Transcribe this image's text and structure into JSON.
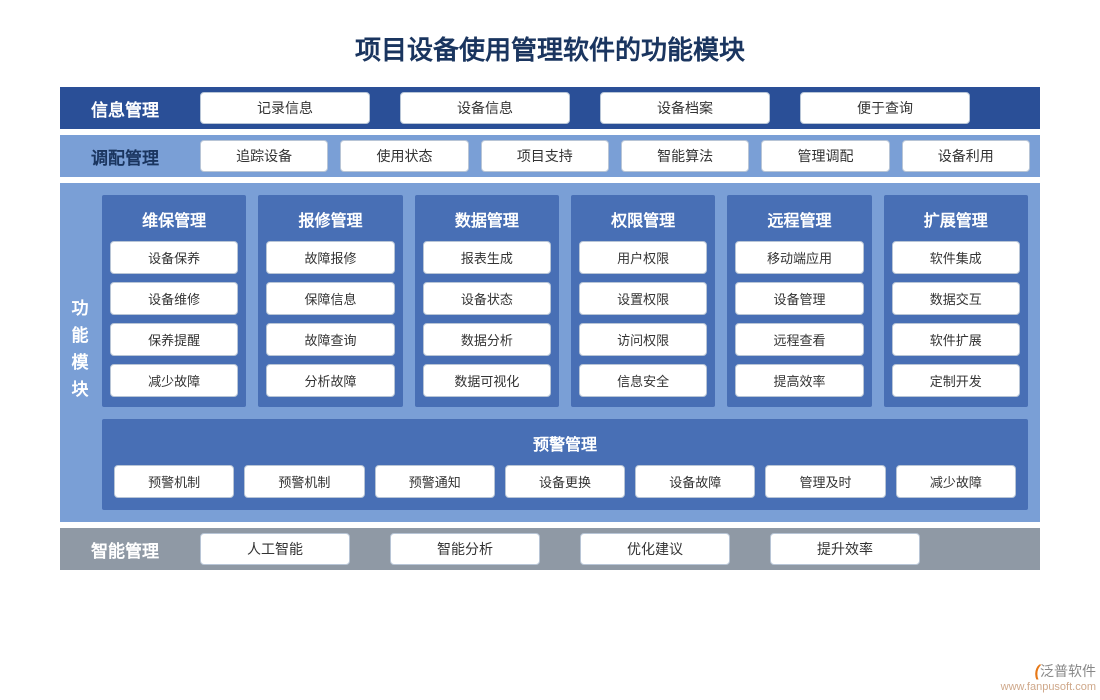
{
  "title": "项目设备使用管理软件的功能模块",
  "colors": {
    "title_text": "#1a355f",
    "row_info_bg": "#2a4f97",
    "row_alloc_bg": "#7a9fd6",
    "main_bg": "#7a9fd6",
    "col_bg": "#486fb5",
    "row_smart_bg": "#8f99a5",
    "pill_bg": "#ffffff",
    "pill_border": "#b8c5d6",
    "pill_text": "#333333",
    "white_text": "#ffffff"
  },
  "rows": {
    "info": {
      "label": "信息管理",
      "items": [
        "记录信息",
        "设备信息",
        "设备档案",
        "便于查询"
      ]
    },
    "alloc": {
      "label": "调配管理",
      "items": [
        "追踪设备",
        "使用状态",
        "项目支持",
        "智能算法",
        "管理调配",
        "设备利用"
      ]
    },
    "smart": {
      "label": "智能管理",
      "items": [
        "人工智能",
        "智能分析",
        "优化建议",
        "提升效率"
      ]
    }
  },
  "main": {
    "vlabel": "功能模块",
    "columns": [
      {
        "head": "维保管理",
        "items": [
          "设备保养",
          "设备维修",
          "保养提醒",
          "减少故障"
        ]
      },
      {
        "head": "报修管理",
        "items": [
          "故障报修",
          "保障信息",
          "故障查询",
          "分析故障"
        ]
      },
      {
        "head": "数据管理",
        "items": [
          "报表生成",
          "设备状态",
          "数据分析",
          "数据可视化"
        ]
      },
      {
        "head": "权限管理",
        "items": [
          "用户权限",
          "设置权限",
          "访问权限",
          "信息安全"
        ]
      },
      {
        "head": "远程管理",
        "items": [
          "移动端应用",
          "设备管理",
          "远程查看",
          "提高效率"
        ]
      },
      {
        "head": "扩展管理",
        "items": [
          "软件集成",
          "数据交互",
          "软件扩展",
          "定制开发"
        ]
      }
    ],
    "alert": {
      "head": "预警管理",
      "items": [
        "预警机制",
        "预警机制",
        "预警通知",
        "设备更换",
        "设备故障",
        "管理及时",
        "减少故障"
      ]
    }
  },
  "watermark": {
    "brand_prefix": "泛",
    "brand_rest": "普软件",
    "url": "www.fanpusoft.com"
  }
}
